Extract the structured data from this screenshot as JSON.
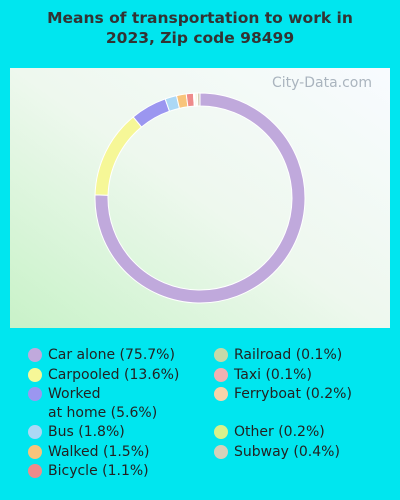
{
  "chart_data": {
    "type": "donut",
    "title": "Means of transportation to work in 2023, Zip code 98499",
    "watermark": "City-Data.com",
    "categories": [
      "Car alone",
      "Carpooled",
      "Worked\nat home",
      "Bus",
      "Walked",
      "Bicycle",
      "Railroad",
      "Taxi",
      "Ferryboat",
      "Other",
      "Subway"
    ],
    "values": [
      75.7,
      13.6,
      5.6,
      1.8,
      1.5,
      1.1,
      0.1,
      0.1,
      0.2,
      0.2,
      0.4
    ],
    "value_labels": [
      "(75.7%)",
      "(13.6%)",
      "(5.6%)",
      "(1.8%)",
      "(1.5%)",
      "(1.1%)",
      "(0.1%)",
      "(0.1%)",
      "(0.2%)",
      "(0.2%)",
      "(0.4%)"
    ],
    "colors": [
      "#c0a9dc",
      "#f6f797",
      "#9b96f0",
      "#acd8f5",
      "#f8c47b",
      "#ee8b8b",
      "#c6d9a8",
      "#f1b1b1",
      "#f8d3a9",
      "#d8f18b",
      "#d5d1b9"
    ]
  }
}
